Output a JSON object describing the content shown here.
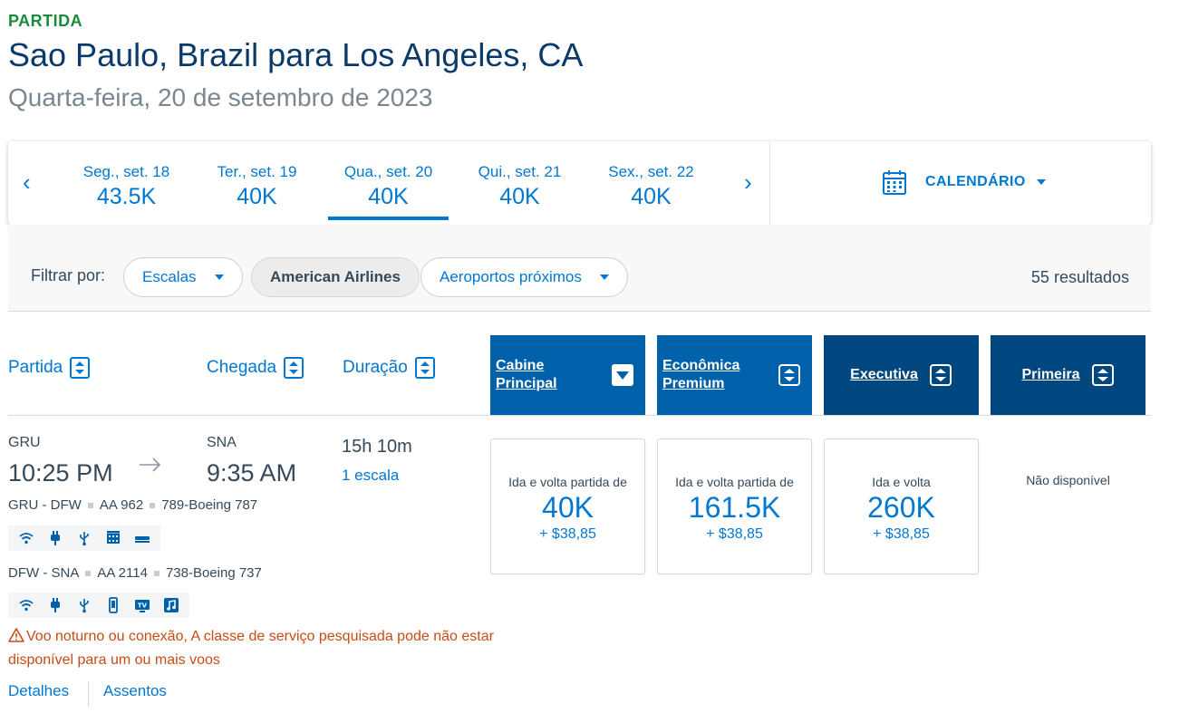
{
  "header": {
    "kicker": "PARTIDA",
    "title": "Sao Paulo, Brazil para Los Angeles, CA",
    "subtitle": "Quarta-feira, 20 de setembro de 2023"
  },
  "date_bar": {
    "prev_arrow": "‹",
    "next_arrow": "›",
    "days": [
      {
        "label": "Seg., set. 18",
        "price": "43.5K",
        "selected": false
      },
      {
        "label": "Ter., set. 19",
        "price": "40K",
        "selected": false
      },
      {
        "label": "Qua., set. 20",
        "price": "40K",
        "selected": true
      },
      {
        "label": "Qui., set. 21",
        "price": "40K",
        "selected": false
      },
      {
        "label": "Sex., set. 22",
        "price": "40K",
        "selected": false
      }
    ],
    "calendar_label": "CALENDÁRIO",
    "calendar_icon": "calendar-icon"
  },
  "filters": {
    "label": "Filtrar por:",
    "stops": "Escalas",
    "airline": "American Airlines",
    "nearby": "Aeroportos próximos",
    "results": "55 resultados"
  },
  "columns": {
    "departure": "Partida",
    "arrival": "Chegada",
    "duration": "Duração"
  },
  "cabins": [
    {
      "name": "Cabine Principal",
      "color": "#0061ab"
    },
    {
      "name": "Econômica Premium",
      "color": "#0061ab"
    },
    {
      "name": "Executiva",
      "color": "#00467f"
    },
    {
      "name": "Primeira",
      "color": "#00467f"
    }
  ],
  "flight": {
    "origin": "GRU",
    "destination": "SNA",
    "depart_time": "10:25 PM",
    "arrive_time": "9:35 AM",
    "duration": "15h 10m",
    "stops": "1 escala",
    "segments": [
      {
        "route": "GRU - DFW",
        "flight": "AA 962",
        "aircraft": "789-Boeing 787",
        "amenities": [
          "wifi-icon",
          "power-outlet-icon",
          "usb-icon",
          "entertainment-icon",
          "lie-flat-seat-icon"
        ]
      },
      {
        "route": "DFW - SNA",
        "flight": "AA 2114",
        "aircraft": "738-Boeing 737",
        "amenities": [
          "wifi-icon",
          "power-outlet-icon",
          "usb-icon",
          "device-entertainment-icon",
          "live-tv-icon",
          "music-icon"
        ]
      }
    ],
    "warning": "Voo noturno ou conexão, A classe de serviço pesquisada pode não estar disponível para um ou mais voos",
    "details_link": "Detalhes",
    "seats_link": "Assentos",
    "fares": [
      {
        "label": "Ida e volta partida de",
        "price": "40K",
        "tax": "+ $38,85"
      },
      {
        "label": "Ida e volta partida de",
        "price": "161.5K",
        "tax": "+ $38,85"
      },
      {
        "label": "Ida e volta",
        "price": "260K",
        "tax": "+ $38,85"
      }
    ],
    "unavailable": "Não disponível"
  },
  "colors": {
    "accent": "#0078d2",
    "cabin_light": "#0061ab",
    "cabin_dark": "#00467f",
    "kicker": "#1b8a3a",
    "warning": "#c84b14"
  }
}
